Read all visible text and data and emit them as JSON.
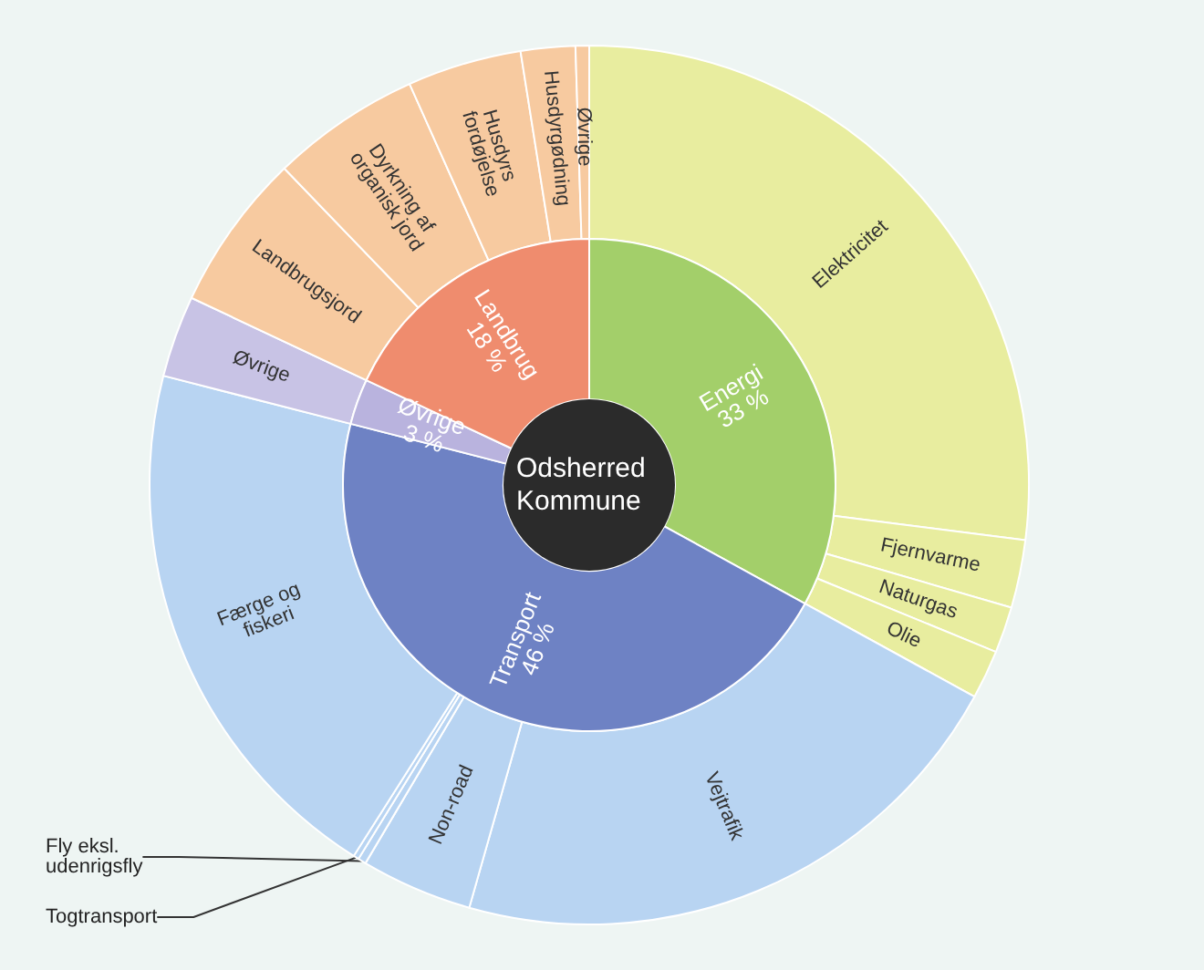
{
  "chart_data": [
    {
      "type": "donut",
      "title": "Odsherred Kommune",
      "categories": [
        "Energi",
        "Transport",
        "Øvrige",
        "Landbrug"
      ],
      "values": [
        33,
        46,
        3,
        18
      ],
      "value_labels": [
        "33 %",
        "46 %",
        "3 %",
        "18 %"
      ],
      "colors": [
        "#a3cf6a",
        "#6e82c4",
        "#b9b3de",
        "#ef8c6e"
      ]
    },
    {
      "type": "donut",
      "categories": [
        "Elektricitet",
        "Fjernvarme",
        "Naturgas",
        "Olie",
        "Vejtrafik",
        "Non-road",
        "Fly eksl. udenrigsfly",
        "Togtransport",
        "Færge og fiskeri",
        "Øvrige",
        "Landbrugsjord",
        "Dyrkning af organisk jord",
        "Husdyrs fordøjelse",
        "Husdyrgødning",
        "Øvrige"
      ],
      "values": [
        27,
        2.5,
        1.7,
        1.8,
        21.4,
        4.1,
        0.3,
        0.2,
        20,
        3,
        5.8,
        5.5,
        4.2,
        2,
        0.5
      ],
      "colors": [
        "#e8ed9f",
        "#e8ed9f",
        "#e8ed9f",
        "#e8ed9f",
        "#b8d4f2",
        "#b8d4f2",
        "#b8d4f2",
        "#b8d4f2",
        "#b8d4f2",
        "#c8c3e5",
        "#f7caa0",
        "#f7caa0",
        "#f7caa0",
        "#f7caa0",
        "#f7caa0"
      ]
    }
  ]
}
